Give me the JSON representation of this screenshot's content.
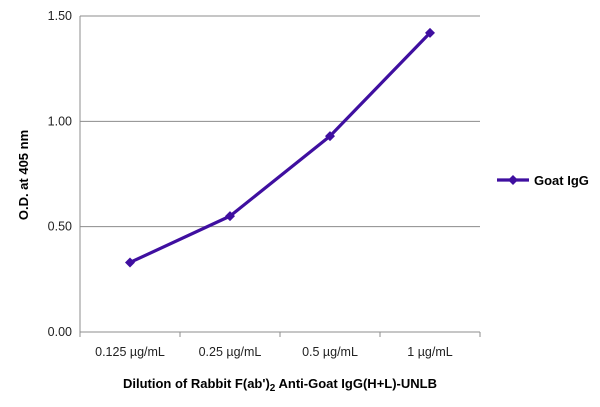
{
  "chart_data": {
    "type": "line",
    "title": "",
    "xlabel": "Dilution of Rabbit F(ab')2 Anti-Goat IgG(H+L)-UNLB",
    "xlabel_parts": {
      "before_sub": "Dilution of Rabbit F(ab')",
      "sub": "2",
      "after_sub": " Anti-Goat IgG(H+L)-UNLB"
    },
    "ylabel": "O.D. at 405 nm",
    "categories": [
      "0.125 µg/mL",
      "0.25 µg/mL",
      "0.5 µg/mL",
      "1 µg/mL"
    ],
    "y_ticks": [
      "0.00",
      "0.50",
      "1.00",
      "1.50"
    ],
    "ylim": [
      0,
      1.5
    ],
    "grid": true,
    "legend_position": "right",
    "series": [
      {
        "name": "Goat IgG",
        "values": [
          0.33,
          0.55,
          0.93,
          1.42
        ],
        "color": "#3f0fa0"
      }
    ]
  }
}
